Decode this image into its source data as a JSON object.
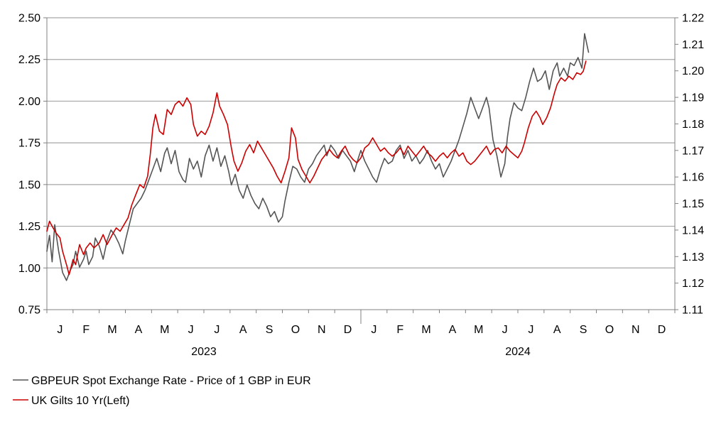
{
  "chart_data": {
    "type": "line",
    "title": "",
    "legend_position": "bottom-left",
    "grid": true,
    "left_axis": {
      "ylim": [
        0.75,
        2.5
      ],
      "ticks": [
        "0.75",
        "1.00",
        "1.25",
        "1.50",
        "1.75",
        "2.00",
        "2.25",
        "2.50"
      ]
    },
    "right_axis": {
      "ylim": [
        1.11,
        1.22
      ],
      "ticks": [
        "1.11",
        "1.12",
        "1.13",
        "1.14",
        "1.15",
        "1.16",
        "1.17",
        "1.18",
        "1.19",
        "1.20",
        "1.21",
        "1.22"
      ]
    },
    "x_axis": {
      "months": [
        "J",
        "F",
        "M",
        "A",
        "M",
        "J",
        "J",
        "A",
        "S",
        "O",
        "N",
        "D",
        "J",
        "F",
        "M",
        "A",
        "M",
        "J",
        "J",
        "A",
        "S",
        "O",
        "N",
        "D"
      ],
      "years": [
        "2023",
        "2024"
      ]
    },
    "series": [
      {
        "name": "GBPEUR Spot Exchange Rate - Price of 1 GBP in EUR",
        "axis": "right",
        "color": "#555555",
        "points": [
          [
            0.0,
            1.132
          ],
          [
            0.1,
            1.138
          ],
          [
            0.2,
            1.128
          ],
          [
            0.3,
            1.142
          ],
          [
            0.45,
            1.132
          ],
          [
            0.6,
            1.124
          ],
          [
            0.75,
            1.121
          ],
          [
            0.9,
            1.125
          ],
          [
            1.0,
            1.127
          ],
          [
            1.1,
            1.132
          ],
          [
            1.25,
            1.126
          ],
          [
            1.4,
            1.129
          ],
          [
            1.5,
            1.132
          ],
          [
            1.6,
            1.127
          ],
          [
            1.75,
            1.13
          ],
          [
            1.85,
            1.137
          ],
          [
            2.0,
            1.134
          ],
          [
            2.15,
            1.129
          ],
          [
            2.3,
            1.136
          ],
          [
            2.45,
            1.14
          ],
          [
            2.6,
            1.138
          ],
          [
            2.75,
            1.135
          ],
          [
            2.9,
            1.131
          ],
          [
            3.0,
            1.136
          ],
          [
            3.15,
            1.142
          ],
          [
            3.3,
            1.148
          ],
          [
            3.45,
            1.15
          ],
          [
            3.6,
            1.152
          ],
          [
            3.75,
            1.155
          ],
          [
            3.9,
            1.159
          ],
          [
            4.05,
            1.163
          ],
          [
            4.2,
            1.167
          ],
          [
            4.35,
            1.162
          ],
          [
            4.5,
            1.169
          ],
          [
            4.6,
            1.171
          ],
          [
            4.75,
            1.165
          ],
          [
            4.9,
            1.17
          ],
          [
            5.05,
            1.162
          ],
          [
            5.2,
            1.159
          ],
          [
            5.3,
            1.158
          ],
          [
            5.45,
            1.167
          ],
          [
            5.6,
            1.163
          ],
          [
            5.75,
            1.166
          ],
          [
            5.9,
            1.16
          ],
          [
            6.05,
            1.168
          ],
          [
            6.2,
            1.172
          ],
          [
            6.35,
            1.166
          ],
          [
            6.5,
            1.171
          ],
          [
            6.65,
            1.164
          ],
          [
            6.8,
            1.168
          ],
          [
            6.95,
            1.162
          ],
          [
            7.05,
            1.157
          ],
          [
            7.2,
            1.161
          ],
          [
            7.35,
            1.155
          ],
          [
            7.5,
            1.152
          ],
          [
            7.65,
            1.157
          ],
          [
            7.8,
            1.153
          ],
          [
            7.95,
            1.15
          ],
          [
            8.1,
            1.148
          ],
          [
            8.25,
            1.152
          ],
          [
            8.4,
            1.149
          ],
          [
            8.55,
            1.145
          ],
          [
            8.7,
            1.147
          ],
          [
            8.85,
            1.143
          ],
          [
            9.0,
            1.145
          ],
          [
            9.1,
            1.151
          ],
          [
            9.25,
            1.158
          ],
          [
            9.4,
            1.164
          ],
          [
            9.55,
            1.163
          ],
          [
            9.7,
            1.16
          ],
          [
            9.85,
            1.158
          ],
          [
            10.0,
            1.163
          ],
          [
            10.15,
            1.165
          ],
          [
            10.3,
            1.168
          ],
          [
            10.45,
            1.17
          ],
          [
            10.6,
            1.172
          ],
          [
            10.7,
            1.168
          ],
          [
            10.85,
            1.172
          ],
          [
            11.0,
            1.17
          ],
          [
            11.15,
            1.167
          ],
          [
            11.3,
            1.17
          ],
          [
            11.45,
            1.168
          ],
          [
            11.6,
            1.166
          ],
          [
            11.75,
            1.162
          ],
          [
            11.9,
            1.167
          ],
          [
            12.0,
            1.17
          ],
          [
            12.15,
            1.166
          ],
          [
            12.3,
            1.163
          ],
          [
            12.45,
            1.16
          ],
          [
            12.6,
            1.158
          ],
          [
            12.75,
            1.163
          ],
          [
            12.9,
            1.167
          ],
          [
            13.05,
            1.165
          ],
          [
            13.2,
            1.166
          ],
          [
            13.35,
            1.17
          ],
          [
            13.5,
            1.172
          ],
          [
            13.65,
            1.167
          ],
          [
            13.8,
            1.17
          ],
          [
            13.95,
            1.166
          ],
          [
            14.1,
            1.168
          ],
          [
            14.25,
            1.165
          ],
          [
            14.4,
            1.167
          ],
          [
            14.55,
            1.17
          ],
          [
            14.7,
            1.166
          ],
          [
            14.85,
            1.163
          ],
          [
            15.0,
            1.165
          ],
          [
            15.15,
            1.16
          ],
          [
            15.3,
            1.163
          ],
          [
            15.45,
            1.166
          ],
          [
            15.6,
            1.17
          ],
          [
            15.75,
            1.174
          ],
          [
            15.9,
            1.179
          ],
          [
            16.05,
            1.184
          ],
          [
            16.2,
            1.19
          ],
          [
            16.35,
            1.186
          ],
          [
            16.5,
            1.182
          ],
          [
            16.65,
            1.186
          ],
          [
            16.8,
            1.19
          ],
          [
            16.9,
            1.186
          ],
          [
            17.05,
            1.174
          ],
          [
            17.2,
            1.168
          ],
          [
            17.35,
            1.16
          ],
          [
            17.5,
            1.165
          ],
          [
            17.6,
            1.175
          ],
          [
            17.7,
            1.182
          ],
          [
            17.85,
            1.188
          ],
          [
            18.0,
            1.186
          ],
          [
            18.15,
            1.185
          ],
          [
            18.3,
            1.19
          ],
          [
            18.45,
            1.196
          ],
          [
            18.6,
            1.201
          ],
          [
            18.75,
            1.196
          ],
          [
            18.9,
            1.197
          ],
          [
            19.05,
            1.2
          ],
          [
            19.2,
            1.193
          ],
          [
            19.35,
            1.2
          ],
          [
            19.5,
            1.203
          ],
          [
            19.6,
            1.198
          ],
          [
            19.75,
            1.201
          ],
          [
            19.9,
            1.198
          ],
          [
            20.0,
            1.203
          ],
          [
            20.15,
            1.202
          ],
          [
            20.3,
            1.205
          ],
          [
            20.45,
            1.201
          ],
          [
            20.55,
            1.214
          ],
          [
            20.7,
            1.207
          ]
        ]
      },
      {
        "name": "UK Gilts 10 Yr(Left)",
        "axis": "left",
        "color": "#cc0000",
        "points": [
          [
            0.0,
            1.22
          ],
          [
            0.1,
            1.28
          ],
          [
            0.2,
            1.25
          ],
          [
            0.35,
            1.21
          ],
          [
            0.5,
            1.18
          ],
          [
            0.6,
            1.1
          ],
          [
            0.75,
            1.02
          ],
          [
            0.85,
            0.96
          ],
          [
            1.0,
            1.05
          ],
          [
            1.1,
            1.02
          ],
          [
            1.25,
            1.14
          ],
          [
            1.4,
            1.08
          ],
          [
            1.5,
            1.12
          ],
          [
            1.65,
            1.15
          ],
          [
            1.8,
            1.12
          ],
          [
            2.0,
            1.15
          ],
          [
            2.15,
            1.2
          ],
          [
            2.3,
            1.14
          ],
          [
            2.5,
            1.2
          ],
          [
            2.65,
            1.24
          ],
          [
            2.8,
            1.22
          ],
          [
            2.95,
            1.26
          ],
          [
            3.1,
            1.3
          ],
          [
            3.25,
            1.38
          ],
          [
            3.4,
            1.44
          ],
          [
            3.55,
            1.5
          ],
          [
            3.7,
            1.48
          ],
          [
            3.85,
            1.55
          ],
          [
            3.95,
            1.68
          ],
          [
            4.05,
            1.84
          ],
          [
            4.15,
            1.92
          ],
          [
            4.3,
            1.82
          ],
          [
            4.45,
            1.8
          ],
          [
            4.6,
            1.95
          ],
          [
            4.75,
            1.92
          ],
          [
            4.9,
            1.98
          ],
          [
            5.05,
            2.0
          ],
          [
            5.2,
            1.97
          ],
          [
            5.35,
            2.02
          ],
          [
            5.5,
            1.98
          ],
          [
            5.6,
            1.86
          ],
          [
            5.75,
            1.79
          ],
          [
            5.9,
            1.82
          ],
          [
            6.05,
            1.8
          ],
          [
            6.2,
            1.85
          ],
          [
            6.35,
            1.93
          ],
          [
            6.5,
            2.05
          ],
          [
            6.6,
            1.97
          ],
          [
            6.75,
            1.92
          ],
          [
            6.9,
            1.86
          ],
          [
            7.05,
            1.72
          ],
          [
            7.15,
            1.64
          ],
          [
            7.3,
            1.58
          ],
          [
            7.45,
            1.63
          ],
          [
            7.6,
            1.7
          ],
          [
            7.75,
            1.74
          ],
          [
            7.9,
            1.69
          ],
          [
            8.05,
            1.76
          ],
          [
            8.2,
            1.72
          ],
          [
            8.35,
            1.68
          ],
          [
            8.5,
            1.64
          ],
          [
            8.65,
            1.6
          ],
          [
            8.8,
            1.55
          ],
          [
            8.95,
            1.51
          ],
          [
            9.1,
            1.58
          ],
          [
            9.25,
            1.66
          ],
          [
            9.35,
            1.84
          ],
          [
            9.5,
            1.78
          ],
          [
            9.6,
            1.65
          ],
          [
            9.75,
            1.59
          ],
          [
            9.9,
            1.55
          ],
          [
            10.05,
            1.51
          ],
          [
            10.2,
            1.55
          ],
          [
            10.35,
            1.6
          ],
          [
            10.5,
            1.65
          ],
          [
            10.65,
            1.68
          ],
          [
            10.8,
            1.71
          ],
          [
            10.95,
            1.68
          ],
          [
            11.1,
            1.66
          ],
          [
            11.25,
            1.7
          ],
          [
            11.4,
            1.73
          ],
          [
            11.55,
            1.68
          ],
          [
            11.7,
            1.65
          ],
          [
            11.85,
            1.63
          ],
          [
            12.0,
            1.66
          ],
          [
            12.15,
            1.72
          ],
          [
            12.3,
            1.74
          ],
          [
            12.45,
            1.78
          ],
          [
            12.6,
            1.74
          ],
          [
            12.75,
            1.7
          ],
          [
            12.9,
            1.72
          ],
          [
            13.05,
            1.69
          ],
          [
            13.2,
            1.67
          ],
          [
            13.35,
            1.69
          ],
          [
            13.5,
            1.72
          ],
          [
            13.65,
            1.68
          ],
          [
            13.8,
            1.73
          ],
          [
            13.95,
            1.7
          ],
          [
            14.1,
            1.67
          ],
          [
            14.25,
            1.7
          ],
          [
            14.4,
            1.73
          ],
          [
            14.55,
            1.69
          ],
          [
            14.7,
            1.67
          ],
          [
            14.85,
            1.64
          ],
          [
            15.0,
            1.67
          ],
          [
            15.15,
            1.69
          ],
          [
            15.3,
            1.66
          ],
          [
            15.45,
            1.69
          ],
          [
            15.6,
            1.71
          ],
          [
            15.75,
            1.67
          ],
          [
            15.9,
            1.69
          ],
          [
            16.05,
            1.64
          ],
          [
            16.2,
            1.62
          ],
          [
            16.35,
            1.64
          ],
          [
            16.5,
            1.67
          ],
          [
            16.65,
            1.7
          ],
          [
            16.8,
            1.73
          ],
          [
            16.95,
            1.68
          ],
          [
            17.1,
            1.71
          ],
          [
            17.25,
            1.72
          ],
          [
            17.4,
            1.69
          ],
          [
            17.55,
            1.73
          ],
          [
            17.7,
            1.7
          ],
          [
            17.85,
            1.68
          ],
          [
            18.0,
            1.66
          ],
          [
            18.15,
            1.7
          ],
          [
            18.25,
            1.75
          ],
          [
            18.4,
            1.84
          ],
          [
            18.55,
            1.91
          ],
          [
            18.7,
            1.94
          ],
          [
            18.85,
            1.9
          ],
          [
            18.95,
            1.86
          ],
          [
            19.1,
            1.9
          ],
          [
            19.25,
            1.96
          ],
          [
            19.4,
            2.05
          ],
          [
            19.5,
            2.1
          ],
          [
            19.65,
            2.14
          ],
          [
            19.8,
            2.12
          ],
          [
            19.95,
            2.15
          ],
          [
            20.1,
            2.13
          ],
          [
            20.25,
            2.17
          ],
          [
            20.4,
            2.16
          ],
          [
            20.5,
            2.18
          ],
          [
            20.6,
            2.24
          ]
        ]
      }
    ]
  }
}
